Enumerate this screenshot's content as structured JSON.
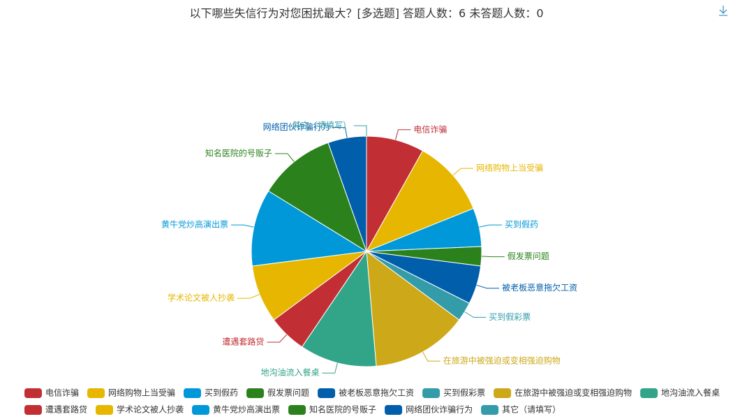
{
  "chart_data": {
    "type": "pie",
    "title": "以下哪些失信行为对您困扰最大？[多选题]  答题人数：6  未答题人数：0",
    "categories": [
      "电信诈骗",
      "网络购物上当受骗",
      "买到假药",
      "假发票问题",
      "被老板恶意拖欠工资",
      "买到假彩票",
      "在旅游中被强迫或变相强迫购物",
      "地沟油流入餐桌",
      "遭遇套路贷",
      "学术论文被人抄袭",
      "黄牛党炒高演出票",
      "知名医院的号贩子",
      "网络团伙诈骗行为",
      "其它（请填写）"
    ],
    "values": [
      3,
      4,
      2,
      1,
      2,
      1,
      5,
      4,
      2,
      3,
      4,
      4,
      2,
      0
    ],
    "colors": [
      "#c12e34",
      "#e6b600",
      "#0098d9",
      "#2b821d",
      "#005eaa",
      "#339ca8",
      "#cda819",
      "#32a487",
      "#c12e34",
      "#e6b600",
      "#0098d9",
      "#2b821d",
      "#005eaa",
      "#339ca8"
    ],
    "legend": "bottom"
  }
}
